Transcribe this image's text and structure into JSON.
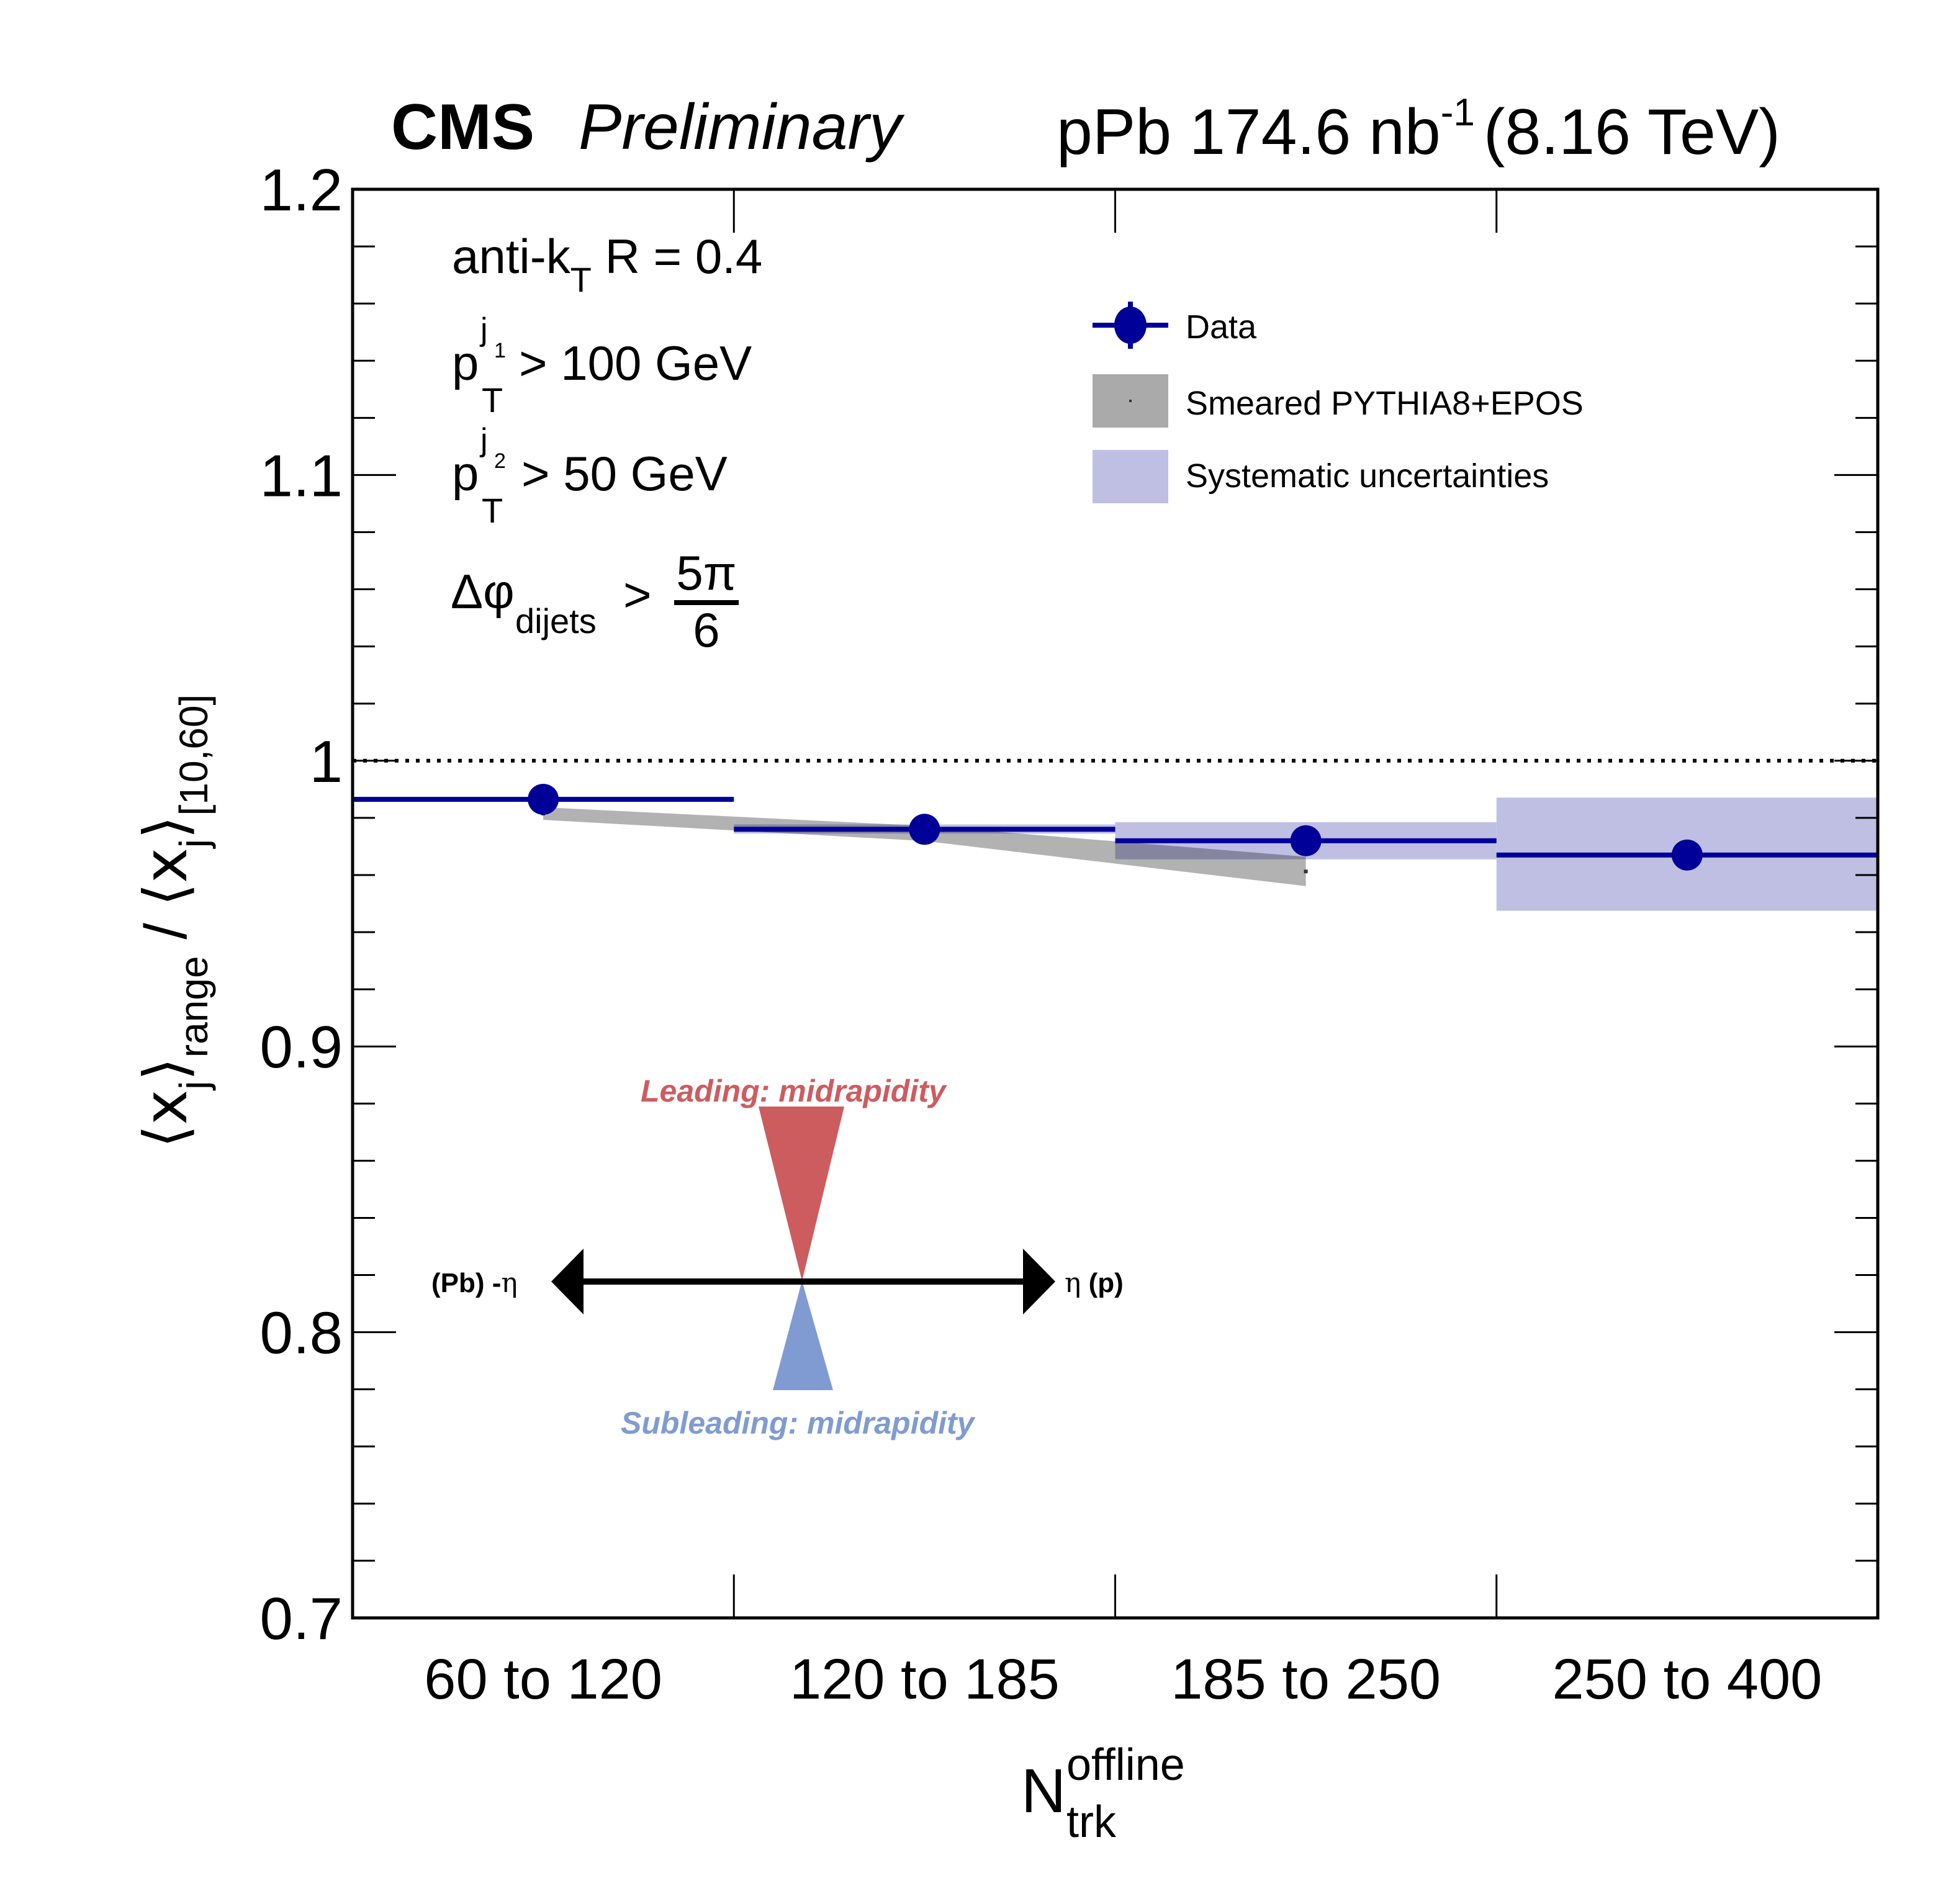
{
  "header": {
    "experiment": "CMS",
    "status": "Preliminary",
    "lumi_prefix": "pPb 174.6 nb",
    "lumi_exponent": "-1",
    "energy": "(8.16 TeV)"
  },
  "annotations": {
    "jet_algo_main": "anti-k",
    "jet_algo_sub": "T",
    "jet_algo_rest": " R = 0.4",
    "lead_cut": {
      "p": "p",
      "sup": "j",
      "supsub": "1",
      "sub": "T",
      "text": "> 100 GeV"
    },
    "sublead_cut": {
      "p": "p",
      "sup": "j",
      "supsub": "2",
      "sub": "T",
      "text": "> 50 GeV"
    },
    "dphi_cut": {
      "symbol": "Δφ",
      "sub": "dijets",
      "op": ">",
      "num": "5π",
      "den": "6"
    }
  },
  "legend": {
    "items": [
      {
        "label": "Data",
        "kind": "marker",
        "color": "#000099"
      },
      {
        "label": "Smeared PYTHIA8+EPOS",
        "kind": "box",
        "color": "#aaaaaa"
      },
      {
        "label": "Systematic uncertainties",
        "kind": "box",
        "color": "#bfbfe4"
      }
    ]
  },
  "inset": {
    "leading_label": "Leading: midrapidity",
    "subleading_label": "Subleading: midrapidity",
    "left_label_bold": "(Pb) -",
    "left_label_sym": "η",
    "right_label_sym": "η",
    "right_label_bold": " (p)",
    "leading_color": "#cd5c5f",
    "subleading_color": "#7f9bd1"
  },
  "chart_data": {
    "type": "scatter",
    "title": "CMS Preliminary",
    "subtitle": "pPb 174.6 nb^-1 (8.16 TeV)",
    "xlabel": "N_trk^offline",
    "xlabel_main": "N",
    "xlabel_sup": "offline",
    "xlabel_sub": "trk",
    "ylabel": "⟨x_j⟩_range / ⟨x_j⟩_[10,60]",
    "ylabel_parts": {
      "open": "⟨x",
      "sub1": "j",
      "close1": "⟩",
      "sub_range": "range",
      "slash": " / ",
      "open2": "⟨x",
      "sub2": "j",
      "close2": "⟩",
      "sub_ref": "[10,60]"
    },
    "categories": [
      "60 to 120",
      "120 to 185",
      "185 to 250",
      "250 to 400"
    ],
    "ylim": [
      0.7,
      1.2
    ],
    "yticks": [
      "0.7",
      "0.8",
      "0.9",
      "1",
      "1.1",
      "1.2"
    ],
    "ytick_values": [
      0.7,
      0.8,
      0.9,
      1.0,
      1.1,
      1.2
    ],
    "y_minor_step": 0.02,
    "reference_line": 1.0,
    "series": [
      {
        "name": "Data",
        "values": [
          0.9865,
          0.976,
          0.972,
          0.967
        ],
        "syst_low": [
          0.9862,
          0.9745,
          0.9655,
          0.9475
        ],
        "syst_high": [
          0.9868,
          0.9777,
          0.9785,
          0.9871
        ],
        "color": "#000099"
      },
      {
        "name": "Smeared PYTHIA8+EPOS",
        "band_low": [
          0.9793,
          0.9719,
          0.9561
        ],
        "band_high": [
          0.9837,
          0.9772,
          0.9664
        ],
        "color": "#aaaaaa"
      }
    ],
    "grid": false,
    "legend_position": "top-right"
  }
}
